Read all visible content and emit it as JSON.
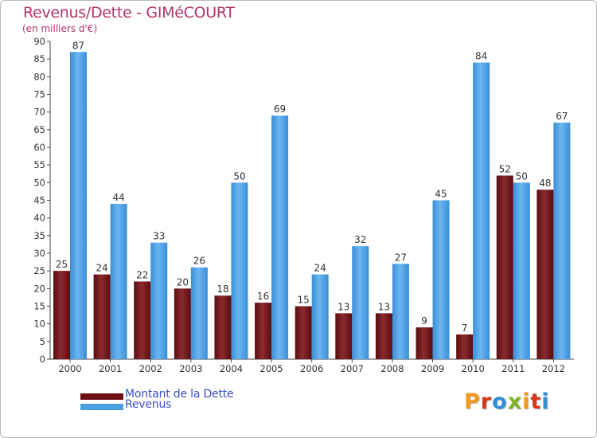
{
  "title": "Revenus/Dette - GIMéCOURT",
  "subtitle": "(en milliers d'€)",
  "legend": [
    {
      "label": "Montant de la Dette",
      "color": "#6b0f12"
    },
    {
      "label": "Revenus",
      "color": "#4a9fe0"
    }
  ],
  "logo": {
    "text": "Proxiti",
    "letter_colors": [
      "#f29a1c",
      "#d43a1a",
      "#2e8fd6",
      "#7bb52a",
      "#f29a1c",
      "#d43a1a",
      "#2e8fd6"
    ]
  },
  "chart_data": {
    "type": "bar",
    "title": "Revenus/Dette - GIMéCOURT",
    "subtitle": "(en milliers d'€)",
    "xlabel": "",
    "ylabel": "",
    "ylim": [
      0,
      90
    ],
    "yticks": [
      0,
      5,
      10,
      15,
      20,
      25,
      30,
      35,
      40,
      45,
      50,
      55,
      60,
      65,
      70,
      75,
      80,
      85,
      90
    ],
    "grid": false,
    "legend_position": "bottom-left",
    "categories": [
      "2000",
      "2001",
      "2002",
      "2003",
      "2004",
      "2005",
      "2006",
      "2007",
      "2008",
      "2009",
      "2010",
      "2011",
      "2012"
    ],
    "series": [
      {
        "name": "Montant de la Dette",
        "color": "#6b0f12",
        "values": [
          25,
          24,
          22,
          20,
          18,
          16,
          15,
          13,
          13,
          9,
          7,
          52,
          48
        ]
      },
      {
        "name": "Revenus",
        "color": "#4a9fe0",
        "values": [
          87,
          44,
          33,
          26,
          50,
          69,
          24,
          32,
          27,
          45,
          84,
          50,
          67
        ]
      }
    ]
  }
}
